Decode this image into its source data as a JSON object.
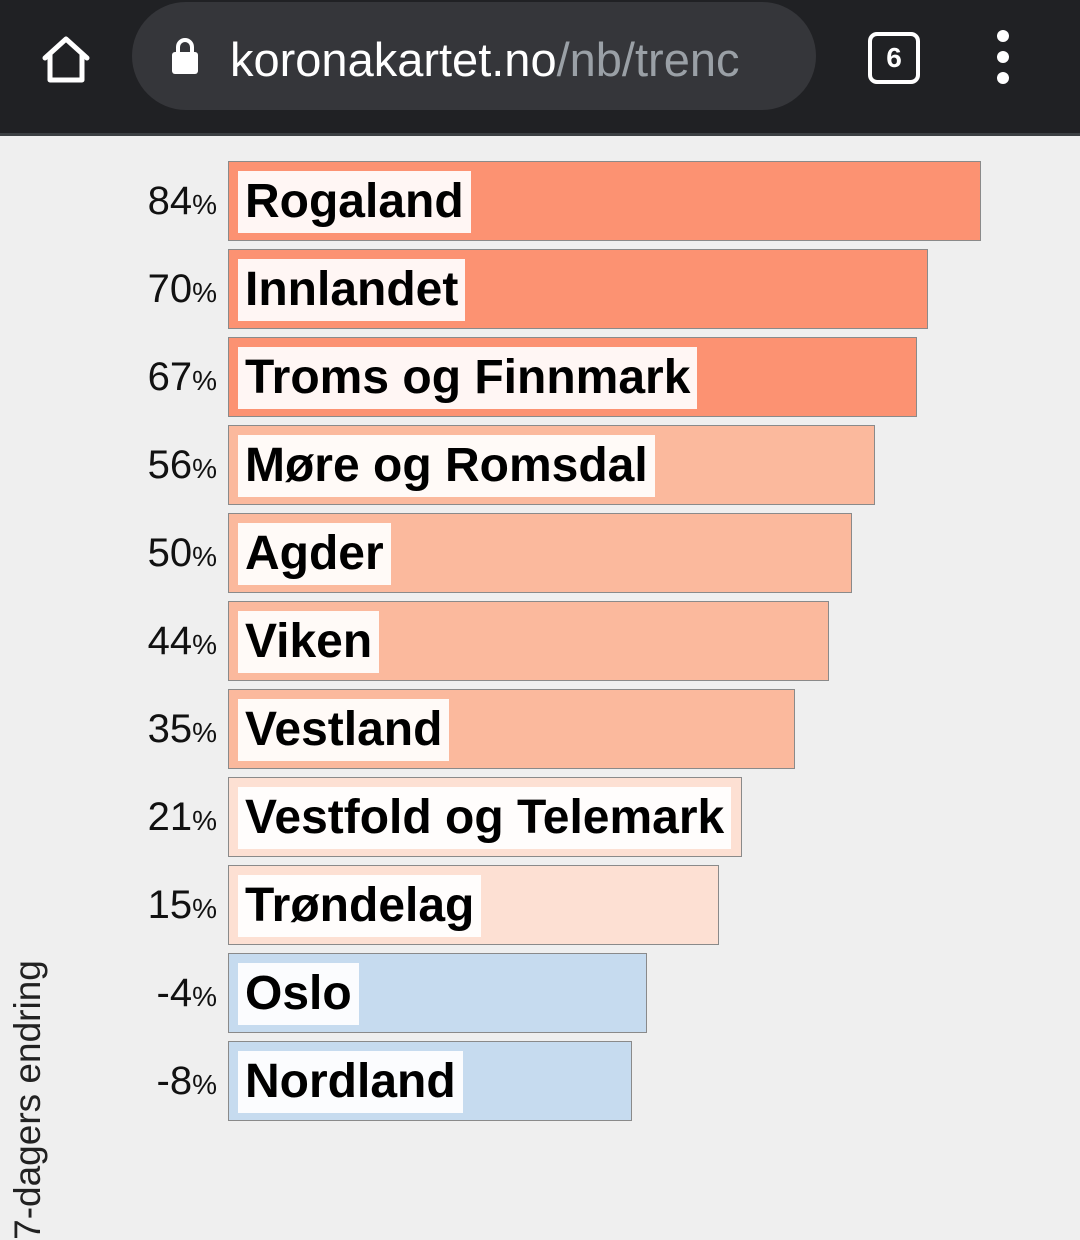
{
  "browser": {
    "url_host": "koronakartet.no",
    "url_path": "/nb/trenc",
    "tab_count": "6",
    "icons": {
      "home": "home-icon",
      "lock": "lock-icon",
      "menu": "more-vert-icon"
    }
  },
  "chart_data": {
    "type": "bar",
    "orientation": "horizontal",
    "ylabel": "7-dagers endring",
    "categories": [
      "Rogaland",
      "Innlandet",
      "Troms og Finnmark",
      "Møre og Romsdal",
      "Agder",
      "Viken",
      "Vestland",
      "Vestfold og Telemark",
      "Trøndelag",
      "Oslo",
      "Nordland"
    ],
    "values": [
      84,
      70,
      67,
      56,
      50,
      44,
      35,
      21,
      15,
      -4,
      -8
    ],
    "value_labels": [
      "84",
      "70",
      "67",
      "56",
      "50",
      "44",
      "35",
      "21",
      "15",
      "-4",
      "-8"
    ],
    "value_suffix": "%",
    "grid": false,
    "colors": {
      "high": "#fc9272",
      "medium": "#fbb99d",
      "low": "#fde0d3",
      "negative": "#c6dbef",
      "bar_border": "#8a8a8a",
      "background": "#efefef"
    }
  }
}
